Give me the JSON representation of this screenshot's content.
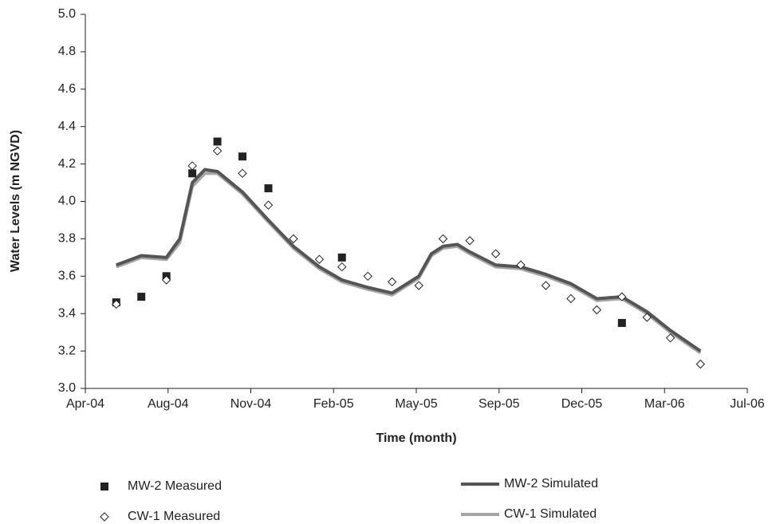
{
  "chart_data": {
    "type": "scatter-line",
    "y_label": "Water Levels (m NGVD)",
    "x_label": "Time (month)",
    "xlim": [
      38107,
      38899
    ],
    "xticks": [
      {
        "value": 38107,
        "label": "Apr-04"
      },
      {
        "value": 38206,
        "label": "Aug-04"
      },
      {
        "value": 38305,
        "label": "Nov-04"
      },
      {
        "value": 38404,
        "label": "Feb-05"
      },
      {
        "value": 38503,
        "label": "May-05"
      },
      {
        "value": 38602,
        "label": "Sep-05"
      },
      {
        "value": 38701,
        "label": "Dec-05"
      },
      {
        "value": 38800,
        "label": "Mar-06"
      },
      {
        "value": 38899,
        "label": "Jul-06"
      }
    ],
    "ylim": [
      3.0,
      5.0
    ],
    "yticks": [
      {
        "value": 3.0,
        "label": "3.0"
      },
      {
        "value": 3.2,
        "label": "3.2"
      },
      {
        "value": 3.4,
        "label": "3.4"
      },
      {
        "value": 3.6,
        "label": "3.6"
      },
      {
        "value": 3.8,
        "label": "3.8"
      },
      {
        "value": 4.0,
        "label": "4.0"
      },
      {
        "value": 4.2,
        "label": "4.2"
      },
      {
        "value": 4.4,
        "label": "4.4"
      },
      {
        "value": 4.6,
        "label": "4.6"
      },
      {
        "value": 4.8,
        "label": "4.8"
      },
      {
        "value": 5.0,
        "label": "5.0"
      }
    ],
    "series": [
      {
        "name": "MW-2 Measured",
        "mode": "markers",
        "marker": "square",
        "color": "#222222",
        "x": [
          38144,
          38174,
          38204,
          38235,
          38265,
          38295,
          38326,
          38414,
          38749
        ],
        "values": [
          3.46,
          3.49,
          3.6,
          4.15,
          4.32,
          4.24,
          4.07,
          3.7,
          3.35
        ]
      },
      {
        "name": "CW-1 Measured",
        "mode": "markers",
        "marker": "diamond",
        "color": "#222222",
        "x": [
          38144,
          38204,
          38235,
          38265,
          38295,
          38326,
          38356,
          38387,
          38414,
          38445,
          38474,
          38506,
          38535,
          38567,
          38598,
          38628,
          38658,
          38688,
          38719,
          38749,
          38779,
          38807,
          38843
        ],
        "values": [
          3.45,
          3.58,
          4.19,
          4.27,
          4.15,
          3.98,
          3.8,
          3.69,
          3.65,
          3.6,
          3.57,
          3.55,
          3.8,
          3.79,
          3.72,
          3.66,
          3.55,
          3.48,
          3.42,
          3.49,
          3.38,
          3.27,
          3.13
        ]
      },
      {
        "name": "MW-2 Simulated",
        "mode": "line",
        "color": "#555555",
        "x": [
          38144,
          38174,
          38204,
          38220,
          38235,
          38250,
          38265,
          38295,
          38326,
          38356,
          38387,
          38414,
          38445,
          38474,
          38506,
          38521,
          38535,
          38552,
          38567,
          38598,
          38628,
          38658,
          38688,
          38719,
          38749,
          38779,
          38807,
          38843
        ],
        "values": [
          3.66,
          3.71,
          3.7,
          3.8,
          4.1,
          4.17,
          4.16,
          4.05,
          3.9,
          3.76,
          3.65,
          3.58,
          3.54,
          3.51,
          3.6,
          3.72,
          3.76,
          3.77,
          3.73,
          3.66,
          3.65,
          3.61,
          3.56,
          3.48,
          3.49,
          3.41,
          3.31,
          3.2
        ]
      },
      {
        "name": "CW-1 Simulated",
        "mode": "line",
        "color": "#a6a6a6",
        "x": [
          38144,
          38174,
          38204,
          38220,
          38235,
          38250,
          38265,
          38295,
          38326,
          38356,
          38387,
          38414,
          38445,
          38474,
          38506,
          38521,
          38535,
          38552,
          38567,
          38598,
          38628,
          38658,
          38688,
          38719,
          38749,
          38779,
          38807,
          38843
        ],
        "values": [
          3.65,
          3.7,
          3.69,
          3.78,
          4.08,
          4.15,
          4.15,
          4.04,
          3.89,
          3.75,
          3.64,
          3.57,
          3.53,
          3.5,
          3.59,
          3.71,
          3.75,
          3.76,
          3.72,
          3.65,
          3.64,
          3.6,
          3.55,
          3.47,
          3.48,
          3.4,
          3.3,
          3.19
        ]
      }
    ]
  }
}
